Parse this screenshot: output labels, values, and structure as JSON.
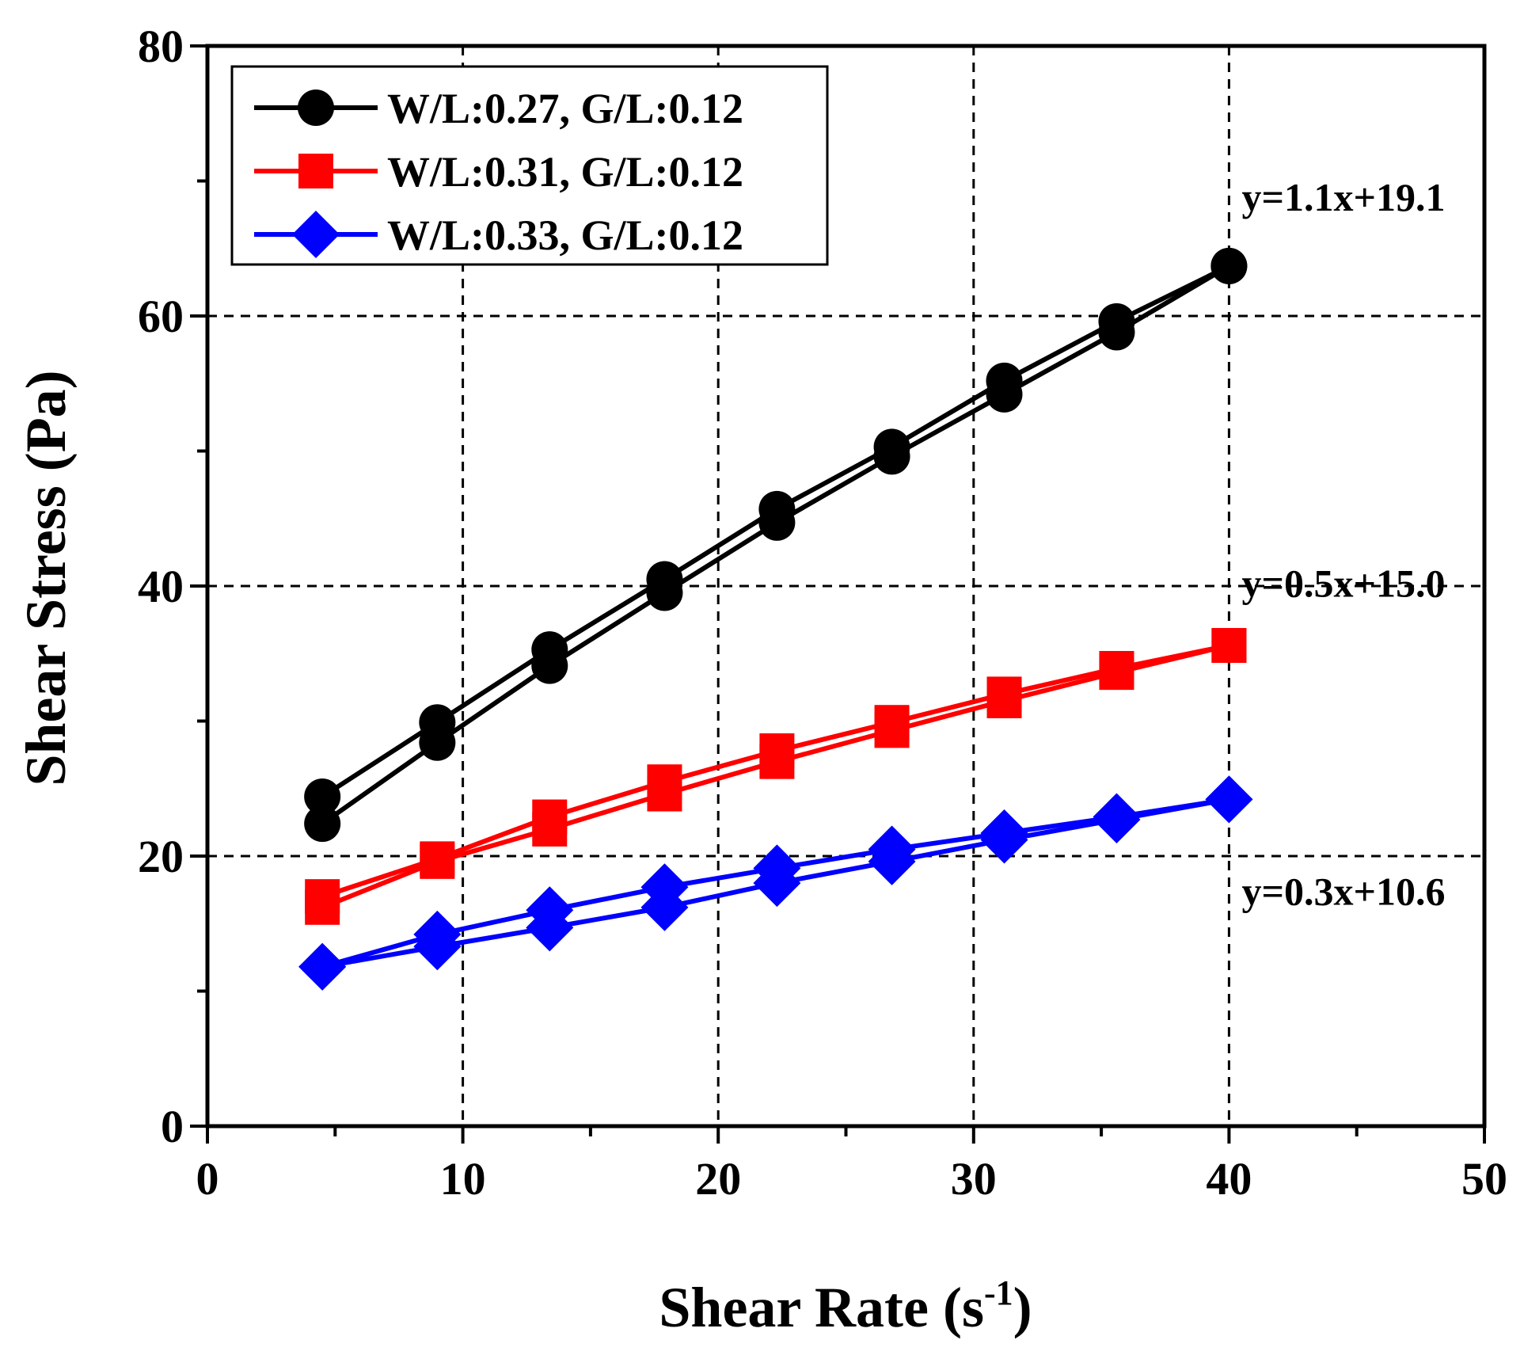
{
  "chart_data": {
    "type": "line",
    "title": "",
    "xlabel": "Shear Rate (s",
    "xlabel_superscript": "-1",
    "xlabel_suffix": ")",
    "ylabel": "Shear Stress (Pa)",
    "xlim": [
      0,
      50
    ],
    "ylim": [
      0,
      80
    ],
    "x_ticks": [
      0,
      10,
      20,
      30,
      40,
      50
    ],
    "y_ticks": [
      0,
      20,
      40,
      60,
      80
    ],
    "x_tick_labels": [
      "0",
      "10",
      "20",
      "30",
      "40",
      "50"
    ],
    "y_tick_labels": [
      "0",
      "20",
      "40",
      "60",
      "80"
    ],
    "x_grid": [
      10,
      20,
      30,
      40
    ],
    "y_grid": [
      20,
      40,
      60
    ],
    "grid": true,
    "legend_position": "top-left",
    "series": [
      {
        "name": "W/L:0.27, G/L:0.12",
        "color": "#000000",
        "marker": "circle",
        "up": {
          "x": [
            4.5,
            9.0,
            13.4,
            17.9,
            22.3,
            26.8,
            31.2,
            35.6,
            40.0
          ],
          "y": [
            24.4,
            29.9,
            35.3,
            40.5,
            45.7,
            50.3,
            55.2,
            59.6,
            63.7
          ]
        },
        "down": {
          "x": [
            4.5,
            9.0,
            13.4,
            17.9,
            22.3,
            26.8,
            31.2,
            35.6,
            40.0
          ],
          "y": [
            22.4,
            28.4,
            34.1,
            39.5,
            44.7,
            49.6,
            54.2,
            58.8,
            63.7
          ]
        }
      },
      {
        "name": "W/L:0.31, G/L:0.12",
        "color": "#ff0000",
        "marker": "square",
        "up": {
          "x": [
            4.5,
            9.0,
            13.4,
            17.9,
            22.3,
            26.8,
            31.2,
            35.6,
            40.0
          ],
          "y": [
            17.0,
            19.8,
            22.9,
            25.5,
            27.8,
            29.9,
            32.0,
            33.9,
            35.6
          ]
        },
        "down": {
          "x": [
            4.5,
            9.0,
            13.4,
            17.9,
            22.3,
            26.8,
            31.2,
            35.6,
            40.0
          ],
          "y": [
            16.2,
            19.6,
            22.0,
            24.6,
            27.0,
            29.3,
            31.5,
            33.6,
            35.6
          ]
        }
      },
      {
        "name": "W/L:0.33, G/L:0.12",
        "color": "#0000ff",
        "marker": "diamond",
        "up": {
          "x": [
            4.5,
            9.0,
            13.4,
            17.9,
            22.3,
            26.8,
            31.2,
            35.6,
            40.0
          ],
          "y": [
            11.8,
            14.2,
            16.0,
            17.7,
            19.1,
            20.5,
            21.7,
            22.9,
            24.2
          ]
        },
        "down": {
          "x": [
            4.5,
            9.0,
            13.4,
            17.9,
            22.3,
            26.8,
            31.2,
            35.6,
            40.0
          ],
          "y": [
            11.8,
            13.3,
            14.7,
            16.2,
            18.0,
            19.6,
            21.2,
            22.7,
            24.2
          ]
        }
      }
    ],
    "annotations": [
      {
        "text": "y=1.1x+19.1",
        "x": 40.5,
        "y": 67.8
      },
      {
        "text": "y=0.5x+15.0",
        "x": 40.5,
        "y": 39.2
      },
      {
        "text": "y=0.3x+10.6",
        "x": 40.5,
        "y": 16.4
      }
    ]
  }
}
